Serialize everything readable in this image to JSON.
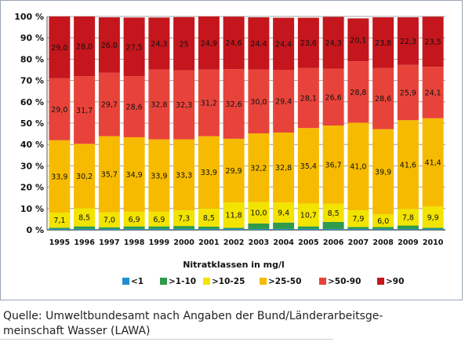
{
  "chart_data": {
    "type": "bar",
    "stacked": true,
    "categories": [
      "1995",
      "1996",
      "1997",
      "1998",
      "1999",
      "2000",
      "2001",
      "2002",
      "2003",
      "2004",
      "2005",
      "2006",
      "2007",
      "2008",
      "2009",
      "2010"
    ],
    "xlabel": "Nitratklassen in mg/l",
    "ylabel": "",
    "ylim": [
      0,
      100
    ],
    "yticks": [
      "0 %",
      "10 %",
      "20 %",
      "30 %",
      "40 %",
      "50 %",
      "60 %",
      "70 %",
      "80 %",
      "90 %",
      "100 %"
    ],
    "grid": true,
    "legend_position": "bottom",
    "series": [
      {
        "name": "<1",
        "color": "#1f8fd0",
        "values": [
          0.4,
          0.4,
          0.4,
          0.4,
          0.4,
          0.4,
          0.4,
          0.4,
          0.4,
          0.4,
          0.4,
          0.4,
          0.4,
          0.4,
          0.4,
          0.4
        ],
        "labels": []
      },
      {
        "name": ">1-10",
        "color": "#2e9a4a",
        "values": [
          0.6,
          1.2,
          0.8,
          1.2,
          1.2,
          1.4,
          1.1,
          0.6,
          2.6,
          3.0,
          1.2,
          3.3,
          0.9,
          0.9,
          1.6,
          0.6
        ],
        "labels": []
      },
      {
        "name": ">10-25",
        "color": "#f2e400",
        "values": [
          7.1,
          8.5,
          7.0,
          6.9,
          6.9,
          7.3,
          8.5,
          11.8,
          10.0,
          9.4,
          10.7,
          8.5,
          7.9,
          6.0,
          7.8,
          9.9
        ],
        "labels": [
          "7,1",
          "8,5",
          "7,0",
          "6,9",
          "6,9",
          "7,3",
          "8,5",
          "11,8",
          "10,0",
          "9,4",
          "10,7",
          "8,5",
          "7,9",
          "6,0",
          "7,8",
          "9,9"
        ]
      },
      {
        "name": ">25-50",
        "color": "#f6bb00",
        "values": [
          33.9,
          30.2,
          35.7,
          34.9,
          33.9,
          33.3,
          33.9,
          29.9,
          32.2,
          32.8,
          35.4,
          36.7,
          41.0,
          39.9,
          41.6,
          41.4
        ],
        "labels": [
          "33,9",
          "30,2",
          "35,7",
          "34,9",
          "33,9",
          "33,3",
          "33,9",
          "29,9",
          "32,2",
          "32,8",
          "35,4",
          "36,7",
          "41,0",
          "39,9",
          "41,6",
          "41,4"
        ]
      },
      {
        "name": ">50-90",
        "color": "#e8433a",
        "values": [
          29.0,
          31.7,
          29.7,
          28.6,
          32.8,
          32.3,
          31.2,
          32.6,
          30.0,
          29.4,
          28.1,
          26.6,
          28.8,
          28.6,
          25.9,
          24.1
        ],
        "labels": [
          "29,0",
          "31,7",
          "29,7",
          "28,6",
          "32,8",
          "32,3",
          "31,2",
          "32,6",
          "30,0",
          "29,4",
          "28,1",
          "26,6",
          "28,8",
          "28,6",
          "25,9",
          "24,1"
        ]
      },
      {
        "name": ">90",
        "color": "#c4161c",
        "values": [
          29.0,
          28.0,
          26.0,
          27.5,
          24.3,
          25,
          24.9,
          24.6,
          24.4,
          24.4,
          23.6,
          24.3,
          20.1,
          23.8,
          22.3,
          23.5
        ],
        "labels": [
          "29,0",
          "28,0",
          "26,0",
          "27,5",
          "24,3",
          "25",
          "24,9",
          "24,6",
          "24,4",
          "24,4",
          "23,6",
          "24,3",
          "20,1",
          "23,8",
          "22,3",
          "23,5"
        ]
      }
    ]
  },
  "caption": {
    "line1": "Quelle: Umweltbundesamt nach Angaben der Bund/Länderarbeitsge-",
    "line2": "meinschaft Wasser (LAWA)"
  }
}
